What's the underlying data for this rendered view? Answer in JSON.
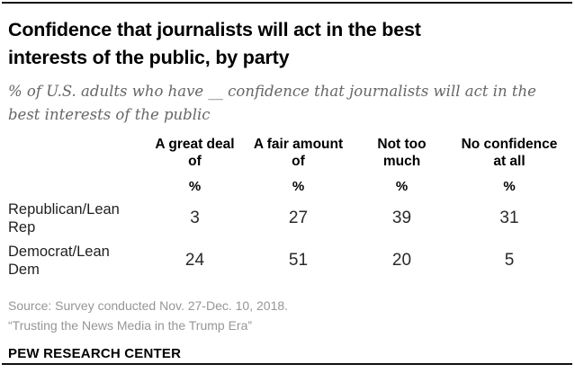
{
  "header": {
    "title": "Confidence that journalists will act in the best interests of the public, by party",
    "subtitle": "% of U.S. adults who have __ confidence that journalists will act in the best interests of the public"
  },
  "display": {
    "columns": [
      "A great deal\nof",
      "A fair amount\nof",
      "Not too\nmuch",
      "No confidence\nat all"
    ],
    "unit_symbol": "%",
    "row_labels": [
      "Republican/Lean\nRep",
      "Democrat/Lean\nDem"
    ]
  },
  "chart_data": {
    "type": "table",
    "title": "Confidence that journalists will act in the best interests of the public, by party",
    "subtitle": "% of U.S. adults who have __ confidence that journalists will act in the best interests of the public",
    "categories": [
      "A great deal of",
      "A fair amount of",
      "Not too much",
      "No confidence at all"
    ],
    "unit": "%",
    "series": [
      {
        "name": "Republican/Lean Rep",
        "values": [
          3,
          27,
          39,
          31
        ]
      },
      {
        "name": "Democrat/Lean Dem",
        "values": [
          24,
          51,
          20,
          5
        ]
      }
    ]
  },
  "footer": {
    "source": "Source: Survey conducted Nov. 27-Dec. 10, 2018.",
    "note": "“Trusting the News Media in the Trump Era”",
    "brand": "PEW RESEARCH CENTER"
  },
  "colors": {
    "title": "#000000",
    "subtitle": "#666666",
    "caption": "#969696",
    "rule": "#121212",
    "background": "#ffffff"
  }
}
